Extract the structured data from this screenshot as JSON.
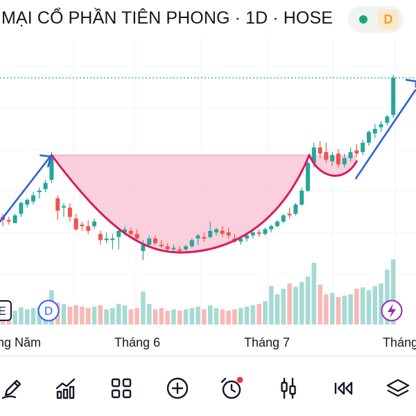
{
  "header": {
    "title": "MẠI CỔ PHẦN TIÊN PHONG · 1D · HOSE",
    "status_color": "#1aa67c",
    "delay_badge": "D",
    "delay_badge_color": "#f0a030"
  },
  "chart_data": {
    "type": "candlestick",
    "x_labels": [
      "ng Năm",
      "Tháng 6",
      "Tháng 7",
      "Tháng"
    ],
    "up_color": "#26a69a",
    "down_color": "#ef5350",
    "candles": [
      [
        16.0,
        16.1,
        15.7,
        15.9
      ],
      [
        15.9,
        16.0,
        15.75,
        15.85
      ],
      [
        15.8,
        16.1,
        15.8,
        16.05
      ],
      [
        16.1,
        16.5,
        16.0,
        16.45
      ],
      [
        16.4,
        16.6,
        16.3,
        16.55
      ],
      [
        16.5,
        16.8,
        16.4,
        16.7
      ],
      [
        16.8,
        16.95,
        16.6,
        16.85
      ],
      [
        16.9,
        17.2,
        16.8,
        17.1
      ],
      [
        17.2,
        18.1,
        17.1,
        18.0
      ],
      [
        16.6,
        16.7,
        15.9,
        16.2
      ],
      [
        16.3,
        16.45,
        16.0,
        16.35
      ],
      [
        16.3,
        16.45,
        15.85,
        16.0
      ],
      [
        15.95,
        16.1,
        15.55,
        15.6
      ],
      [
        15.75,
        15.85,
        15.55,
        15.7
      ],
      [
        15.7,
        15.9,
        15.45,
        15.55
      ],
      [
        15.7,
        15.95,
        15.6,
        15.85
      ],
      [
        15.45,
        15.55,
        15.1,
        15.25
      ],
      [
        15.25,
        15.5,
        15.15,
        15.3
      ],
      [
        15.25,
        15.45,
        14.95,
        15.3
      ],
      [
        15.35,
        15.65,
        14.95,
        15.55
      ],
      [
        15.5,
        15.7,
        15.4,
        15.6
      ],
      [
        15.55,
        15.65,
        15.35,
        15.45
      ],
      [
        15.45,
        15.6,
        15.25,
        15.3
      ],
      [
        14.9,
        15.25,
        14.6,
        15.1
      ],
      [
        15.1,
        15.4,
        15.0,
        15.3
      ],
      [
        15.3,
        15.4,
        15.1,
        15.15
      ],
      [
        15.1,
        15.25,
        15.0,
        15.05
      ],
      [
        15.05,
        15.15,
        14.9,
        14.95
      ],
      [
        14.95,
        15.1,
        14.85,
        15.0
      ],
      [
        14.95,
        15.05,
        14.85,
        14.9
      ],
      [
        14.95,
        15.1,
        14.9,
        15.05
      ],
      [
        15.05,
        15.3,
        15.0,
        15.25
      ],
      [
        15.3,
        15.45,
        15.1,
        15.4
      ],
      [
        15.35,
        15.5,
        15.2,
        15.3
      ],
      [
        15.35,
        15.85,
        15.3,
        15.55
      ],
      [
        15.5,
        15.65,
        15.4,
        15.6
      ],
      [
        15.55,
        15.7,
        15.35,
        15.45
      ],
      [
        15.5,
        15.65,
        15.3,
        15.4
      ],
      [
        15.3,
        15.45,
        15.15,
        15.2
      ],
      [
        15.2,
        15.35,
        15.1,
        15.3
      ],
      [
        15.3,
        15.45,
        15.2,
        15.4
      ],
      [
        15.4,
        15.55,
        15.3,
        15.5
      ],
      [
        15.5,
        15.6,
        15.35,
        15.45
      ],
      [
        15.45,
        15.65,
        15.4,
        15.6
      ],
      [
        15.6,
        15.75,
        15.5,
        15.7
      ],
      [
        15.7,
        15.9,
        15.65,
        15.85
      ],
      [
        15.85,
        16.1,
        15.8,
        16.05
      ],
      [
        16.1,
        16.3,
        15.95,
        16.05
      ],
      [
        16.1,
        16.45,
        16.05,
        16.4
      ],
      [
        16.4,
        16.95,
        16.35,
        16.85
      ],
      [
        16.85,
        17.8,
        16.8,
        17.75
      ],
      [
        17.75,
        18.4,
        17.6,
        18.25
      ],
      [
        18.25,
        18.45,
        17.9,
        18.05
      ],
      [
        18.1,
        18.4,
        17.75,
        17.85
      ],
      [
        17.8,
        18.1,
        17.65,
        18.0
      ],
      [
        18.05,
        18.2,
        17.6,
        17.7
      ],
      [
        17.7,
        18.05,
        17.6,
        17.9
      ],
      [
        17.9,
        18.25,
        17.8,
        18.1
      ],
      [
        18.15,
        18.35,
        17.95,
        18.05
      ],
      [
        18.1,
        18.5,
        18.0,
        18.4
      ],
      [
        18.4,
        18.8,
        18.3,
        18.75
      ],
      [
        18.7,
        19.0,
        18.55,
        18.85
      ],
      [
        18.9,
        19.1,
        18.75,
        19.0
      ],
      [
        19.05,
        19.3,
        18.95,
        19.25
      ],
      [
        19.3,
        20.6,
        19.2,
        20.5
      ]
    ],
    "volumes": [
      30,
      28,
      20,
      25,
      22,
      24,
      26,
      30,
      50,
      32,
      30,
      26,
      28,
      26,
      24,
      26,
      28,
      22,
      24,
      30,
      28,
      22,
      24,
      48,
      30,
      22,
      24,
      20,
      22,
      20,
      22,
      24,
      26,
      22,
      28,
      24,
      22,
      20,
      22,
      24,
      26,
      28,
      30,
      34,
      56,
      44,
      52,
      60,
      55,
      62,
      70,
      90,
      58,
      44,
      46,
      40,
      42,
      44,
      52,
      54,
      50,
      56,
      60,
      80,
      95
    ],
    "reference_price": 20.5,
    "annotation_colors": {
      "cup_fill": "#f7b7c9",
      "cup_line": "#d81b60",
      "trend_arrow": "#2f5fd6"
    },
    "event_markers": [
      "E",
      "D",
      "lightning"
    ]
  },
  "toolbar": {
    "items": [
      "pencil-icon",
      "chart-icon",
      "grid-icon",
      "add-icon",
      "alarm-icon",
      "candle-icon",
      "replay-icon",
      "layers-icon"
    ]
  }
}
